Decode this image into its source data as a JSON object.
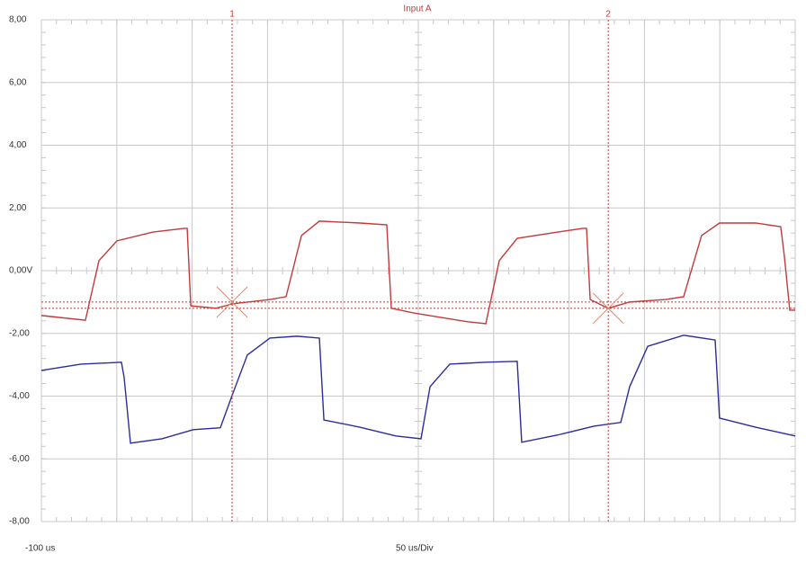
{
  "chart_data": {
    "type": "line",
    "title": "Input A",
    "x_start_label": "-100 us",
    "x_div_label": "50 us/Div",
    "xlim": [
      -100,
      400
    ],
    "xdiv": 50,
    "ylim": [
      -8,
      8
    ],
    "yticks": [
      {
        "value": 8,
        "label": "8,00"
      },
      {
        "value": 6,
        "label": "6,00"
      },
      {
        "value": 4,
        "label": "4,00"
      },
      {
        "value": 2,
        "label": "2,00"
      },
      {
        "value": 0,
        "label": "0,00V"
      },
      {
        "value": -2,
        "label": "-2,00"
      },
      {
        "value": -4,
        "label": "-4,00"
      },
      {
        "value": -6,
        "label": "-6,00"
      },
      {
        "value": -8,
        "label": "-8,00"
      }
    ],
    "grid": true,
    "cursor_color": "#d03030",
    "cursors": [
      {
        "label": "1",
        "x": 26.5,
        "level": -1.0
      },
      {
        "label": "2",
        "x": 276,
        "level": -1.2
      }
    ],
    "series": [
      {
        "color": "#c23a3a",
        "x": [
          -100,
          -70.8,
          -61.8,
          -49.9,
          -26,
          -5.1,
          -3.3,
          -0.9,
          15.8,
          26.5,
          51.6,
          62.3,
          72.5,
          84.4,
          111.2,
          129.1,
          132.1,
          147,
          182.8,
          194.8,
          203.7,
          215.6,
          242.5,
          259.2,
          261.6,
          264,
          275.9,
          290.2,
          314.1,
          326,
          337.9,
          349.8,
          373.7,
          390.4,
          392.8,
          396.4,
          400
        ],
        "values": [
          -1.43,
          -1.58,
          0.32,
          0.95,
          1.23,
          1.35,
          1.35,
          -1.12,
          -1.2,
          -1.06,
          -0.92,
          -0.83,
          1.12,
          1.58,
          1.52,
          1.46,
          -1.2,
          -1.35,
          -1.63,
          -1.69,
          0.32,
          1.03,
          1.23,
          1.35,
          1.35,
          -0.92,
          -1.2,
          -1.0,
          -0.92,
          -0.83,
          1.12,
          1.52,
          1.52,
          1.4,
          0.46,
          -1.26,
          -1.26
        ]
      },
      {
        "color": "#2c2c9c",
        "x": [
          -100,
          -73.7,
          -46.9,
          -45.1,
          -40.9,
          -20,
          0.8,
          18.7,
          26.5,
          36.6,
          51.6,
          69.5,
          84.4,
          87.4,
          111.2,
          135.1,
          151.8,
          157.8,
          170.9,
          194.8,
          215.6,
          218.6,
          242.5,
          266.4,
          284.3,
          290.2,
          302.2,
          326,
          346.9,
          349.8,
          373.7,
          400
        ],
        "values": [
          -3.18,
          -2.98,
          -2.92,
          -3.41,
          -5.5,
          -5.36,
          -5.07,
          -5.01,
          -3.98,
          -2.69,
          -2.15,
          -2.09,
          -2.15,
          -4.76,
          -4.99,
          -5.27,
          -5.36,
          -3.7,
          -2.98,
          -2.92,
          -2.89,
          -5.47,
          -5.24,
          -4.96,
          -4.84,
          -3.7,
          -2.41,
          -2.06,
          -2.21,
          -4.7,
          -4.99,
          -5.27
        ]
      }
    ]
  }
}
